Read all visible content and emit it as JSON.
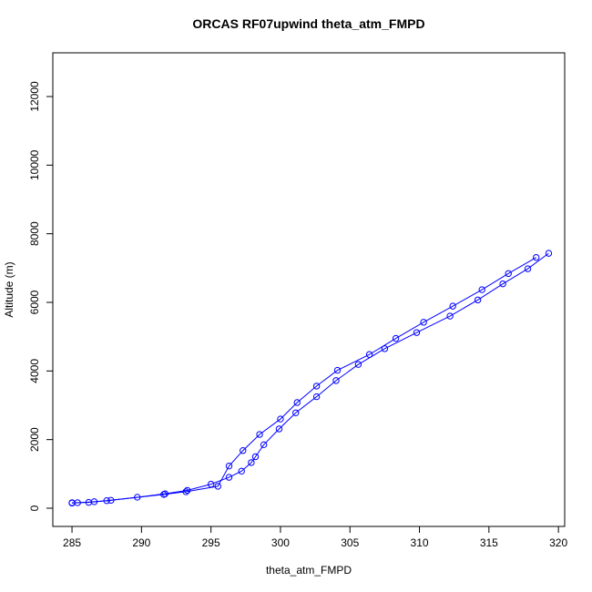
{
  "chart_data": {
    "type": "line",
    "title": "ORCAS RF07upwind theta_atm_FMPD",
    "x_label": "theta_atm_FMPD",
    "y_label": "Altitude (m)",
    "xlim": [
      283.62,
      320.45
    ],
    "ylim": [
      -531,
      13274
    ],
    "xticks": [
      285,
      290,
      295,
      300,
      305,
      310,
      315,
      320
    ],
    "yticks": [
      0,
      2000,
      4000,
      6000,
      8000,
      10000,
      12000
    ],
    "series": [
      {
        "color": "#0000ff",
        "x": [
          285.0,
          286.2,
          287.5,
          289.7,
          291.7,
          293.3,
          295.0,
          296.3,
          297.2,
          297.9,
          298.2,
          298.8,
          299.9,
          301.1,
          302.6,
          304.0,
          305.6,
          307.5,
          309.8,
          312.2,
          314.2,
          316.0,
          317.8,
          319.3
        ],
        "values": [
          160,
          170,
          220,
          320,
          420,
          520,
          700,
          900,
          1080,
          1330,
          1500,
          1850,
          2310,
          2780,
          3250,
          3720,
          4190,
          4650,
          5120,
          5600,
          6070,
          6540,
          6980,
          7430
        ]
      },
      {
        "color": "#0000ff",
        "x": [
          318.4,
          316.4,
          314.5,
          312.4,
          310.3,
          308.3,
          306.4,
          304.1,
          302.6,
          301.2,
          300.0,
          298.5,
          297.3,
          296.3,
          295.5,
          293.2,
          291.6,
          287.8,
          286.6,
          285.4,
          285.0
        ],
        "values": [
          7310,
          6840,
          6370,
          5890,
          5420,
          4950,
          4480,
          4020,
          3560,
          3080,
          2600,
          2150,
          1680,
          1230,
          640,
          480,
          400,
          230,
          190,
          160,
          150
        ]
      }
    ]
  }
}
